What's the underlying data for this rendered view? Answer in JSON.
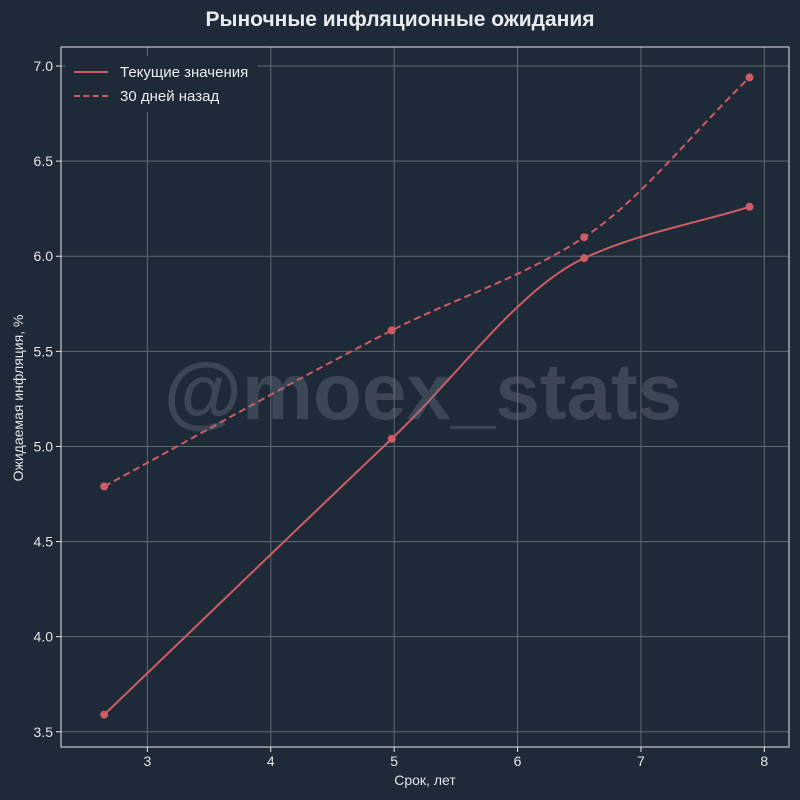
{
  "chart_data": {
    "type": "line",
    "title": "Рыночные инфляционные ожидания",
    "xlabel": "Срок, лет",
    "ylabel": "Ожидаемая инфляция, %",
    "xlim": [
      2.3,
      8.2
    ],
    "ylim": [
      3.42,
      7.1
    ],
    "x_ticks": [
      3,
      4,
      5,
      6,
      7,
      8
    ],
    "y_ticks": [
      3.5,
      4.0,
      4.5,
      5.0,
      5.5,
      6.0,
      6.5,
      7.0
    ],
    "grid": true,
    "legend_position": "top-left",
    "series": [
      {
        "name": "Текущие значения",
        "style": "solid",
        "color": "#cd5c64",
        "points": [
          [
            2.65,
            3.59
          ],
          [
            4.98,
            5.04
          ],
          [
            6.54,
            5.99
          ],
          [
            7.88,
            6.26
          ]
        ]
      },
      {
        "name": "30 дней назад",
        "style": "dashed",
        "color": "#cd5c64",
        "points": [
          [
            2.65,
            4.79
          ],
          [
            4.98,
            5.61
          ],
          [
            6.54,
            6.1
          ],
          [
            7.88,
            6.94
          ]
        ]
      }
    ]
  },
  "watermark": "@moex_stats"
}
